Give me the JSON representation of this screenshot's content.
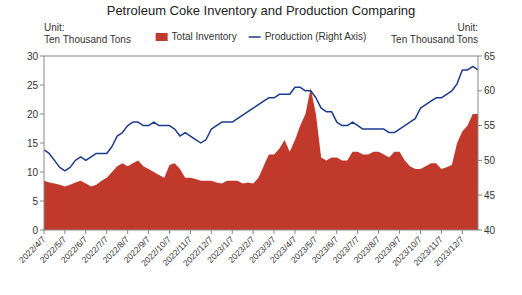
{
  "chart_data": {
    "type": "area",
    "title": "Petroleum Coke Inventory and Production Comparing",
    "y_label": [
      "Unit:",
      "Ten Thousand Tons"
    ],
    "y2_label": [
      "Unit:",
      "Ten Thousand Tons"
    ],
    "categories": [
      "2022/4/7",
      null,
      null,
      null,
      "2022/5/7",
      null,
      null,
      null,
      "2022/6/7",
      null,
      null,
      null,
      "2022/7/7",
      null,
      null,
      null,
      "2022/8/7",
      null,
      null,
      null,
      "2022/9/7",
      null,
      null,
      null,
      "2022/10/7",
      null,
      null,
      null,
      "2022/11/7",
      null,
      null,
      null,
      "2022/12/7",
      null,
      null,
      null,
      "2023/1/7",
      null,
      null,
      null,
      "2023/2/7",
      null,
      null,
      null,
      "2023/3/7",
      null,
      null,
      null,
      "2023/4/7",
      null,
      null,
      null,
      "2023/5/7",
      null,
      null,
      null,
      "2023/6/7",
      null,
      null,
      null,
      "2023/7/7",
      null,
      null,
      null,
      "2023/8/7",
      null,
      null,
      null,
      "2023/9/7",
      null,
      null,
      null,
      "2023/10/7",
      null,
      null,
      null,
      "2023/11/7",
      null,
      null,
      null,
      "2023/12/7",
      null,
      null,
      null
    ],
    "series": [
      {
        "name": "Total Inventory",
        "type": "area",
        "color": "#C0392B",
        "values": [
          8.5,
          8.2,
          8.0,
          7.8,
          7.5,
          7.8,
          8.2,
          8.5,
          8.0,
          7.5,
          7.8,
          8.5,
          9.0,
          10.0,
          11.0,
          11.5,
          11.0,
          11.5,
          12.0,
          11.0,
          10.5,
          10.0,
          9.5,
          9.0,
          11.2,
          11.5,
          10.5,
          9.0,
          9.0,
          8.8,
          8.5,
          8.5,
          8.5,
          8.2,
          8.0,
          8.5,
          8.5,
          8.5,
          8.0,
          8.2,
          8.0,
          9.0,
          11.0,
          13.0,
          13.0,
          14.0,
          15.5,
          13.5,
          15.5,
          18.0,
          20.0,
          24.5,
          20.0,
          12.5,
          12.0,
          12.5,
          12.5,
          12.0,
          12.0,
          13.5,
          13.5,
          13.0,
          13.0,
          13.5,
          13.5,
          13.0,
          12.5,
          13.5,
          13.5,
          12.0,
          11.0,
          10.5,
          10.5,
          11.0,
          11.5,
          11.5,
          10.5,
          10.8,
          11.2,
          15.0,
          17.0,
          18.0,
          20.0,
          20.0
        ]
      },
      {
        "name": "Production (Right Axis)",
        "type": "line",
        "axis": "y2",
        "color": "#1A3A8A",
        "values": [
          51.5,
          51.0,
          50.0,
          49.0,
          48.5,
          49.0,
          50.0,
          50.5,
          50.0,
          50.5,
          51.0,
          51.0,
          51.0,
          52.0,
          53.5,
          54.0,
          55.0,
          55.5,
          55.5,
          55.0,
          55.0,
          55.5,
          55.0,
          55.0,
          55.0,
          54.5,
          53.5,
          54.0,
          53.5,
          53.0,
          52.5,
          53.0,
          54.5,
          55.0,
          55.5,
          55.5,
          55.5,
          56.0,
          56.5,
          57.0,
          57.5,
          58.0,
          58.5,
          59.0,
          59.0,
          59.5,
          59.5,
          59.5,
          60.5,
          60.5,
          60.0,
          60.0,
          59.0,
          57.5,
          57.0,
          57.0,
          55.5,
          55.0,
          55.0,
          55.5,
          55.0,
          54.5,
          54.5,
          54.5,
          54.5,
          54.5,
          54.0,
          54.0,
          54.5,
          55.0,
          55.5,
          56.0,
          57.5,
          58.0,
          58.5,
          59.0,
          59.0,
          59.5,
          60.0,
          61.0,
          63.0,
          63.0,
          63.5,
          63.0
        ]
      }
    ],
    "ylim": [
      0,
      30
    ],
    "yticks": [
      0,
      5,
      10,
      15,
      20,
      25,
      30
    ],
    "y2lim": [
      40,
      65
    ],
    "y2ticks": [
      40,
      45,
      50,
      55,
      60,
      65
    ],
    "grid": false,
    "legend": "top"
  }
}
